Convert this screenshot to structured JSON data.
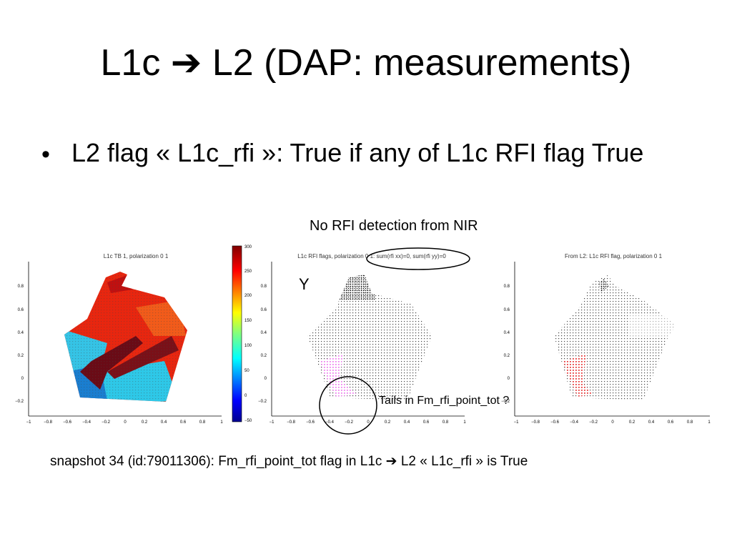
{
  "slide": {
    "title": "L1c ➔ L2 (DAP: measurements)",
    "bullet": "L2 flag « L1c_rfi »: True if any of L1c RFI flag True",
    "annotation_nir": "No RFI detection from NIR",
    "annotation_y": "Y",
    "annotation_tails": "Tails in Fm_rfi_point_tot ?",
    "caption": "snapshot 34 (id:79011306): Fm_rfi_point_tot flag in L1c ➔ L2 « L1c_rfi » is True"
  },
  "panels": [
    {
      "title": "L1c TB 1, polarization 0 1"
    },
    {
      "title": "L1c RFI flags, polarization 0 1: sum(rfi xx)=0, sum(rfi yy)=0"
    },
    {
      "title": "From L2: L1c RFI flag, polarization 0 1"
    }
  ],
  "axes": {
    "yticks": [
      "0.8",
      "0.6",
      "0.4",
      "0.2",
      "0",
      "−0.2"
    ],
    "xticks": [
      "−1",
      "−0.8",
      "−0.6",
      "−0.4",
      "−0.2",
      "0",
      "0.2",
      "0.4",
      "0.6",
      "0.8",
      "1"
    ]
  },
  "colorbar": {
    "ticks": [
      "300",
      "250",
      "200",
      "150",
      "100",
      "50",
      "0",
      "−50"
    ]
  },
  "colors": {
    "hot": "#e8260f",
    "cool": "#1fc8e0",
    "dark": "#7a0a10",
    "rfi_pink": "#ee82ee",
    "rfi_red": "#e83a3a",
    "annotation_circle": "#000000"
  }
}
